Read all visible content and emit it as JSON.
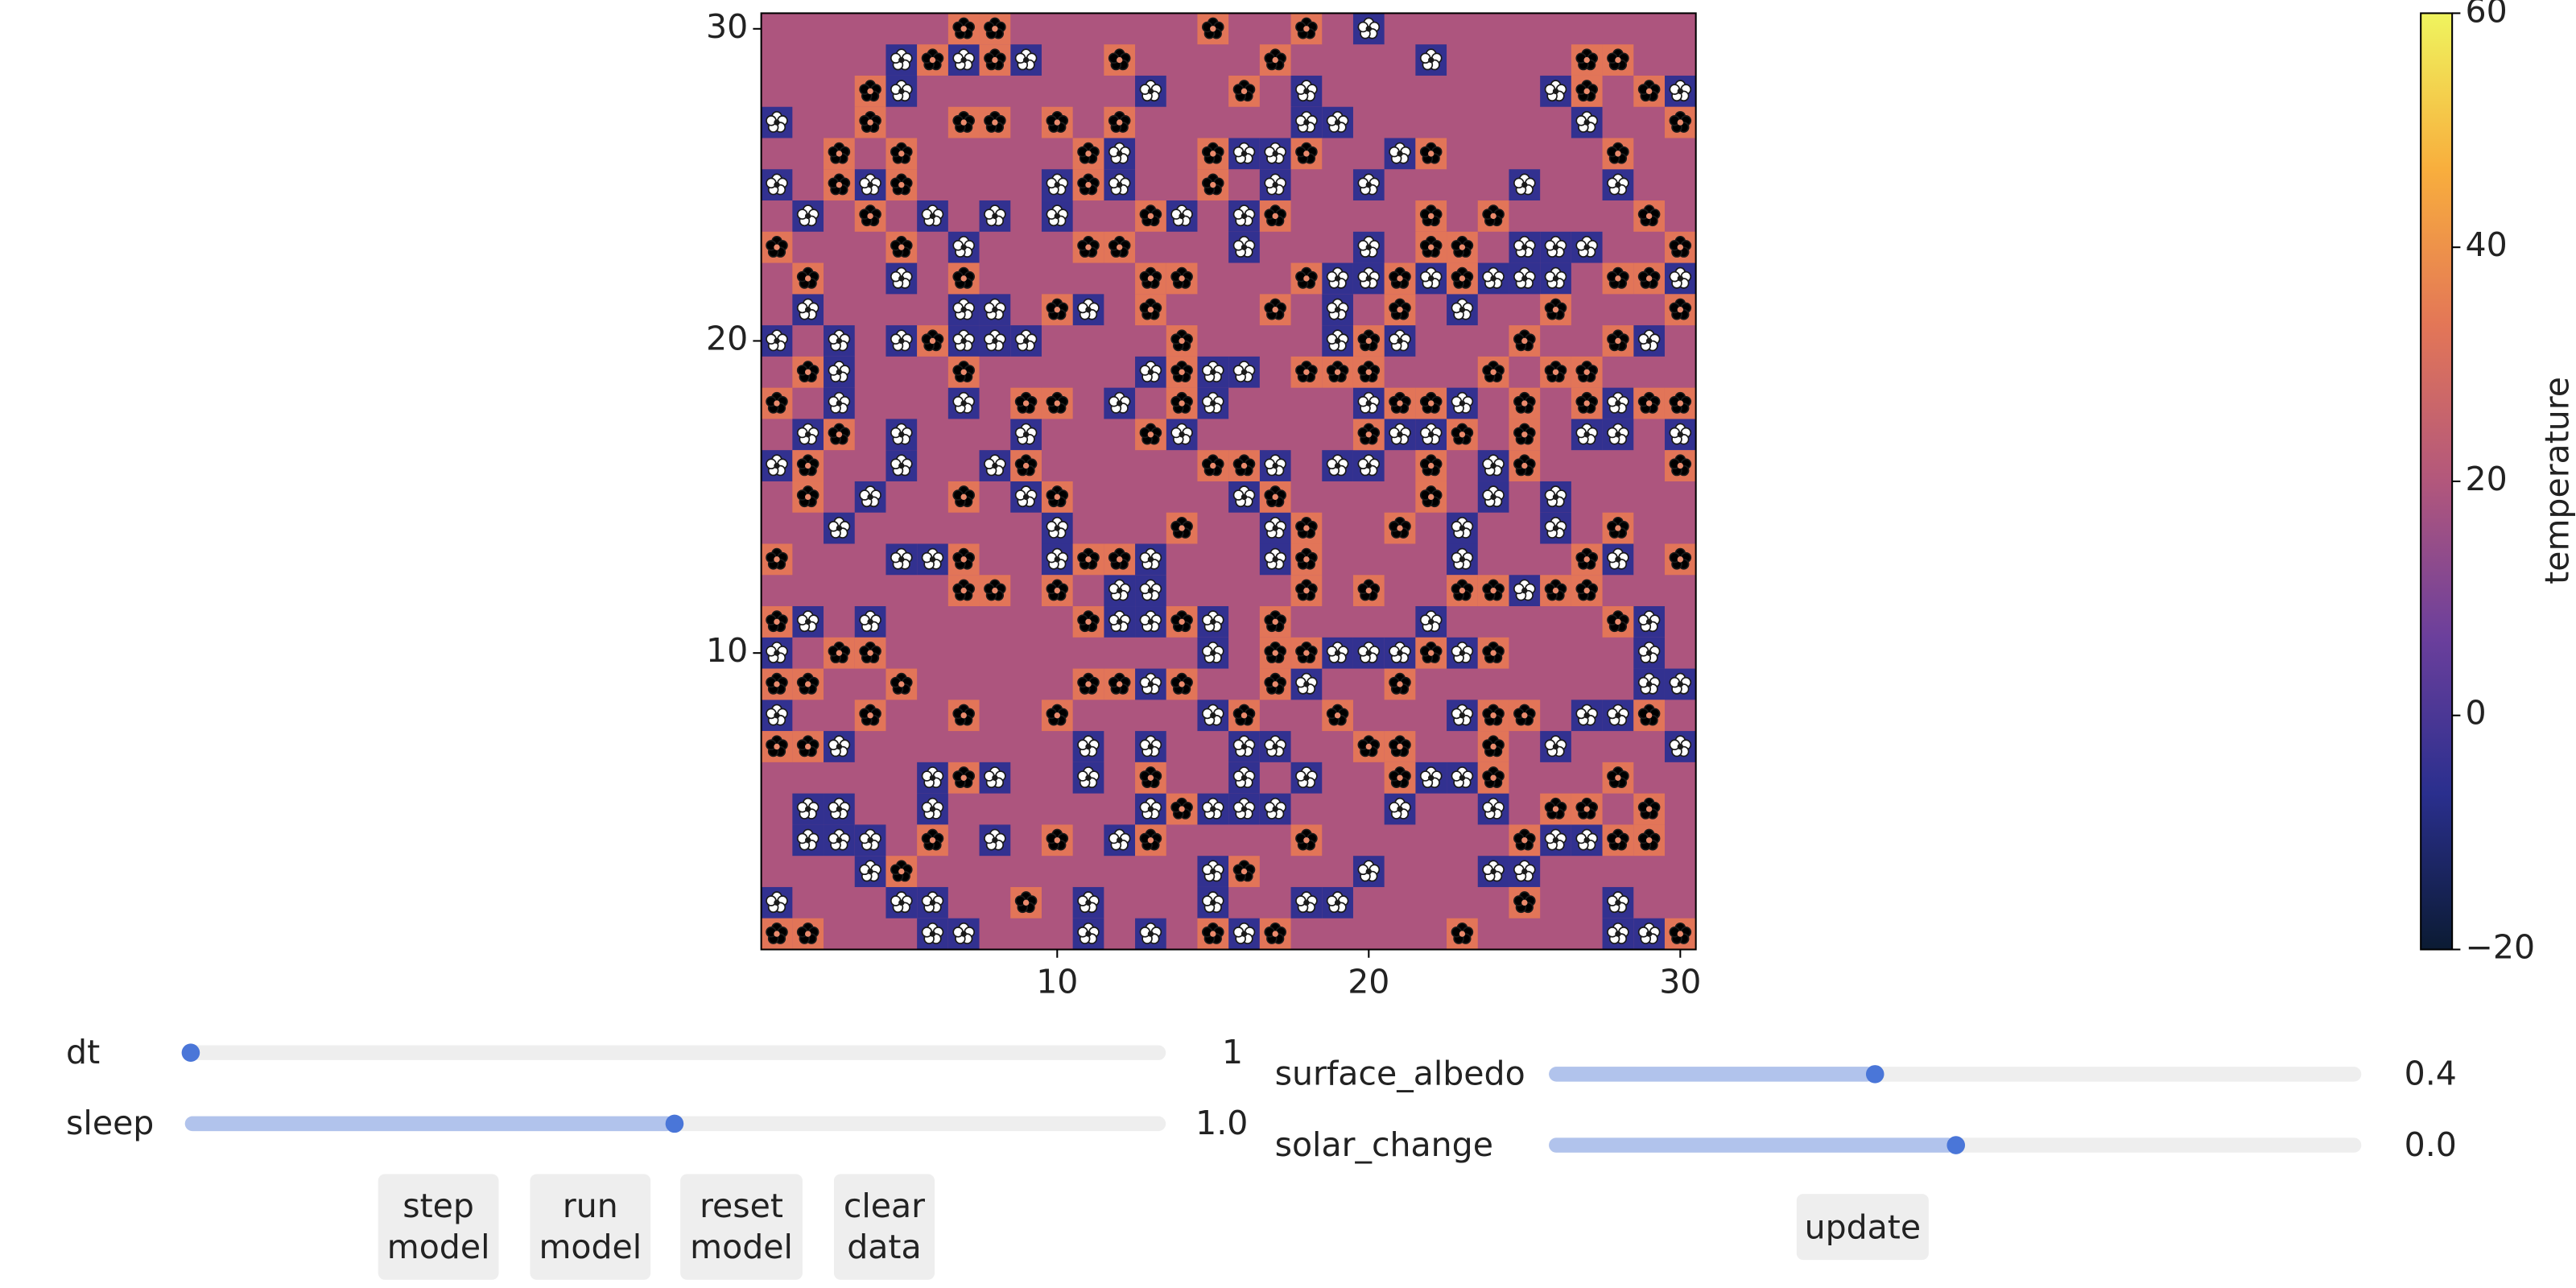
{
  "chart_data": {
    "type": "heatmap",
    "xlim": [
      0.5,
      30.5
    ],
    "ylim": [
      0.5,
      30.5
    ],
    "xticks": [
      10,
      20,
      30
    ],
    "yticks": [
      10,
      20,
      30
    ],
    "colorbar_label": "temperature",
    "colorbar_lim": [
      -20,
      60
    ],
    "colorbar_ticks": [
      {
        "value": -20,
        "label": "−20"
      },
      0,
      20,
      40,
      60
    ],
    "colormap": [
      "#0b1b33",
      "#2a2f8e",
      "#6b3f9c",
      "#b2577c",
      "#e37657",
      "#f8ae3d",
      "#eff45e"
    ],
    "background_temperature": 19,
    "series": [
      {
        "color": "#ffffff",
        "temperature": -5,
        "x": [
          20,
          5,
          7,
          9,
          22,
          5,
          13,
          18,
          26,
          30,
          1,
          18,
          19,
          27,
          12,
          16,
          17,
          21,
          1,
          4,
          10,
          12,
          17,
          20,
          25,
          28,
          2,
          6,
          8,
          10,
          14,
          16,
          7,
          16,
          20,
          25,
          26,
          27,
          5,
          19,
          20,
          22,
          24,
          25,
          26,
          30,
          2,
          7,
          8,
          11,
          19,
          23,
          1,
          3,
          5,
          7,
          8,
          9,
          19,
          21,
          29,
          3,
          13,
          15,
          16,
          3,
          7,
          12,
          15,
          20,
          23,
          28,
          2,
          5,
          9,
          14,
          21,
          22,
          27,
          28,
          30,
          1,
          5,
          8,
          17,
          19,
          20,
          24,
          4,
          9,
          16,
          24,
          26,
          3,
          10,
          17,
          23,
          26,
          5,
          6,
          10,
          13,
          17,
          23,
          28,
          12,
          13,
          25,
          2,
          4,
          12,
          13,
          15,
          22,
          29,
          1,
          15,
          19,
          20,
          21,
          23,
          29,
          13,
          18,
          29,
          30,
          1,
          15,
          23,
          27,
          28,
          3,
          11,
          13,
          16,
          17,
          26,
          30,
          6,
          8,
          11,
          16,
          18,
          22,
          23,
          2,
          3,
          6,
          13,
          15,
          16,
          17,
          21,
          24,
          2,
          3,
          4,
          8,
          12,
          26,
          27,
          4,
          15,
          20,
          24,
          25,
          1,
          5,
          6,
          11,
          15,
          18,
          19,
          28,
          6,
          7,
          11,
          13,
          16,
          28,
          29
        ],
        "y": [
          30,
          29,
          29,
          29,
          29,
          28,
          28,
          28,
          28,
          28,
          27,
          27,
          27,
          27,
          26,
          26,
          26,
          26,
          25,
          25,
          25,
          25,
          25,
          25,
          25,
          25,
          24,
          24,
          24,
          24,
          24,
          24,
          23,
          23,
          23,
          23,
          23,
          23,
          22,
          22,
          22,
          22,
          22,
          22,
          22,
          22,
          21,
          21,
          21,
          21,
          21,
          21,
          20,
          20,
          20,
          20,
          20,
          20,
          20,
          20,
          20,
          19,
          19,
          19,
          19,
          18,
          18,
          18,
          18,
          18,
          18,
          18,
          17,
          17,
          17,
          17,
          17,
          17,
          17,
          17,
          17,
          16,
          16,
          16,
          16,
          16,
          16,
          16,
          15,
          15,
          15,
          15,
          15,
          14,
          14,
          14,
          14,
          14,
          13,
          13,
          13,
          13,
          13,
          13,
          13,
          12,
          12,
          12,
          11,
          11,
          11,
          11,
          11,
          11,
          11,
          10,
          10,
          10,
          10,
          10,
          10,
          10,
          9,
          9,
          9,
          9,
          8,
          8,
          8,
          8,
          8,
          7,
          7,
          7,
          7,
          7,
          7,
          7,
          6,
          6,
          6,
          6,
          6,
          6,
          6,
          5,
          5,
          5,
          5,
          5,
          5,
          5,
          5,
          5,
          4,
          4,
          4,
          4,
          4,
          4,
          4,
          3,
          3,
          3,
          3,
          3,
          2,
          2,
          2,
          2,
          2,
          2,
          2,
          2,
          1,
          1,
          1,
          1,
          1,
          1,
          1
        ]
      },
      {
        "color": "#000000",
        "temperature": 33,
        "x": [
          7,
          8,
          15,
          18,
          6,
          8,
          12,
          17,
          27,
          28,
          4,
          16,
          27,
          29,
          4,
          7,
          8,
          10,
          12,
          30,
          3,
          5,
          11,
          15,
          18,
          22,
          28,
          3,
          5,
          11,
          15,
          4,
          13,
          17,
          22,
          24,
          29,
          1,
          5,
          11,
          12,
          22,
          23,
          30,
          2,
          7,
          13,
          14,
          18,
          21,
          23,
          28,
          29,
          10,
          13,
          17,
          21,
          26,
          30,
          6,
          14,
          20,
          25,
          28,
          2,
          7,
          14,
          18,
          19,
          20,
          24,
          26,
          27,
          1,
          9,
          10,
          14,
          21,
          22,
          25,
          27,
          29,
          30,
          3,
          13,
          20,
          23,
          25,
          2,
          9,
          15,
          16,
          22,
          25,
          30,
          2,
          7,
          10,
          17,
          22,
          14,
          18,
          21,
          28,
          1,
          7,
          11,
          12,
          18,
          27,
          30,
          7,
          8,
          10,
          18,
          20,
          23,
          24,
          26,
          27,
          1,
          11,
          14,
          17,
          28,
          3,
          4,
          17,
          18,
          22,
          24,
          1,
          2,
          5,
          11,
          12,
          14,
          17,
          21,
          4,
          7,
          10,
          16,
          19,
          24,
          25,
          29,
          1,
          2,
          20,
          21,
          24,
          7,
          13,
          21,
          24,
          28,
          14,
          26,
          27,
          29,
          6,
          10,
          13,
          18,
          25,
          28,
          29,
          5,
          16,
          9,
          25,
          1,
          2,
          15,
          17,
          23,
          30
        ],
        "y": [
          30,
          30,
          30,
          30,
          29,
          29,
          29,
          29,
          29,
          29,
          28,
          28,
          28,
          28,
          27,
          27,
          27,
          27,
          27,
          27,
          26,
          26,
          26,
          26,
          26,
          26,
          26,
          25,
          25,
          25,
          25,
          24,
          24,
          24,
          24,
          24,
          24,
          23,
          23,
          23,
          23,
          23,
          23,
          23,
          22,
          22,
          22,
          22,
          22,
          22,
          22,
          22,
          22,
          21,
          21,
          21,
          21,
          21,
          21,
          20,
          20,
          20,
          20,
          20,
          19,
          19,
          19,
          19,
          19,
          19,
          19,
          19,
          19,
          18,
          18,
          18,
          18,
          18,
          18,
          18,
          18,
          18,
          18,
          17,
          17,
          17,
          17,
          17,
          16,
          16,
          16,
          16,
          16,
          16,
          16,
          15,
          15,
          15,
          15,
          15,
          14,
          14,
          14,
          14,
          13,
          13,
          13,
          13,
          13,
          13,
          13,
          12,
          12,
          12,
          12,
          12,
          12,
          12,
          12,
          12,
          11,
          11,
          11,
          11,
          11,
          10,
          10,
          10,
          10,
          10,
          10,
          9,
          9,
          9,
          9,
          9,
          9,
          9,
          9,
          8,
          8,
          8,
          8,
          8,
          8,
          8,
          8,
          7,
          7,
          7,
          7,
          7,
          6,
          6,
          6,
          6,
          6,
          5,
          5,
          5,
          5,
          4,
          4,
          4,
          4,
          4,
          4,
          4,
          3,
          3,
          2,
          2,
          1,
          1,
          1,
          1,
          1,
          1
        ]
      }
    ]
  },
  "controls": {
    "sliders": [
      {
        "label": "dt",
        "value": "1"
      },
      {
        "label": "sleep",
        "value": "1.0"
      },
      {
        "label": "surface_albedo",
        "value": "0.4"
      },
      {
        "label": "solar_change",
        "value": "0.0"
      }
    ],
    "buttons": [
      "step model",
      "run model",
      "reset model",
      "clear data",
      "update"
    ]
  }
}
